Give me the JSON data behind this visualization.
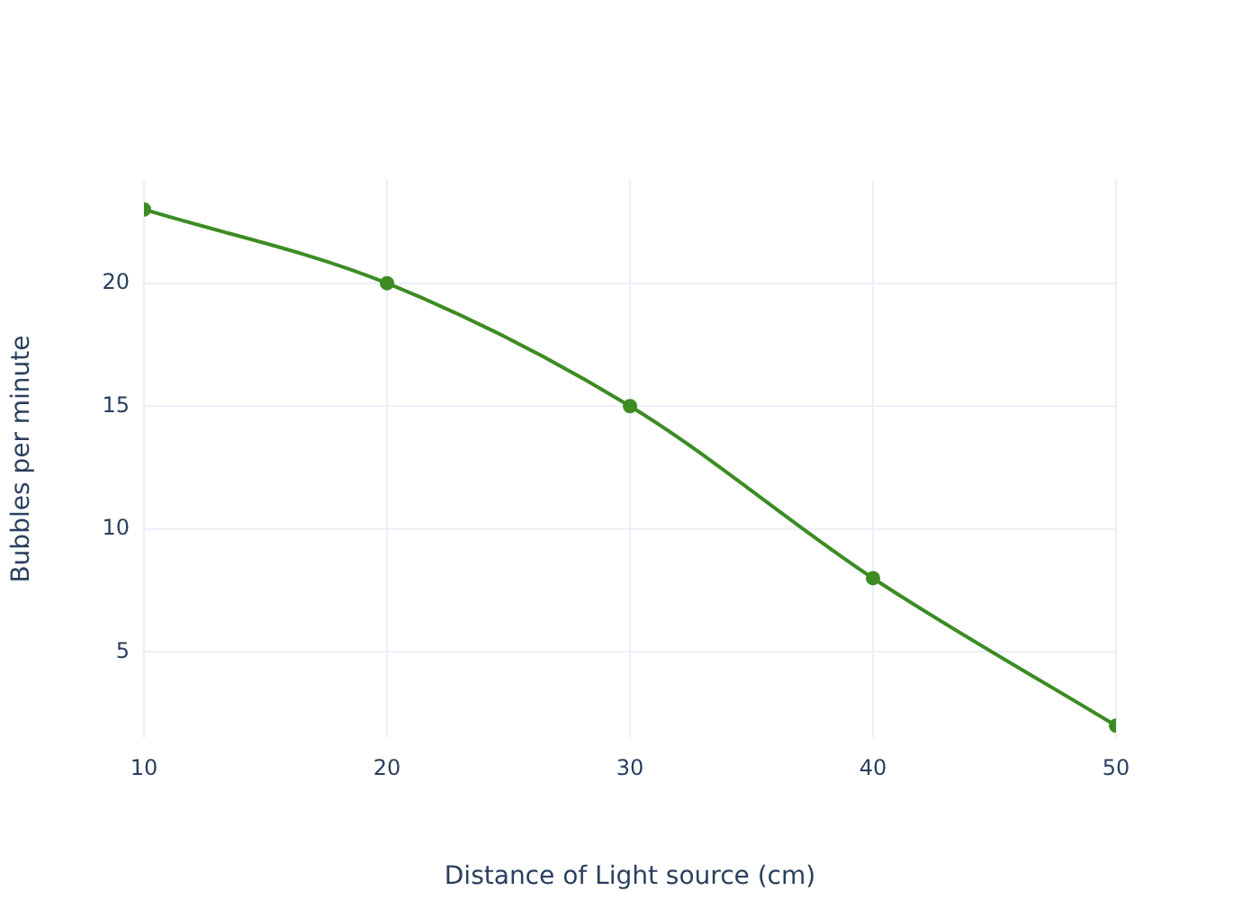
{
  "chart_data": {
    "type": "line",
    "xlabel": "Distance of Light source (cm)",
    "ylabel": "Bubbles per minute",
    "x": [
      10,
      20,
      30,
      40,
      50
    ],
    "series": [
      {
        "color": "#3c8c23",
        "values": [
          23,
          20,
          15,
          8,
          2
        ]
      }
    ],
    "xlim": [
      10,
      50
    ],
    "xticks": [
      10,
      20,
      30,
      40,
      50
    ],
    "ylim": [
      1.5,
      24.2
    ],
    "yticks": [
      5,
      10,
      15,
      20
    ],
    "grid": true,
    "legend": false,
    "marker": "circle",
    "line_style": "solid"
  }
}
